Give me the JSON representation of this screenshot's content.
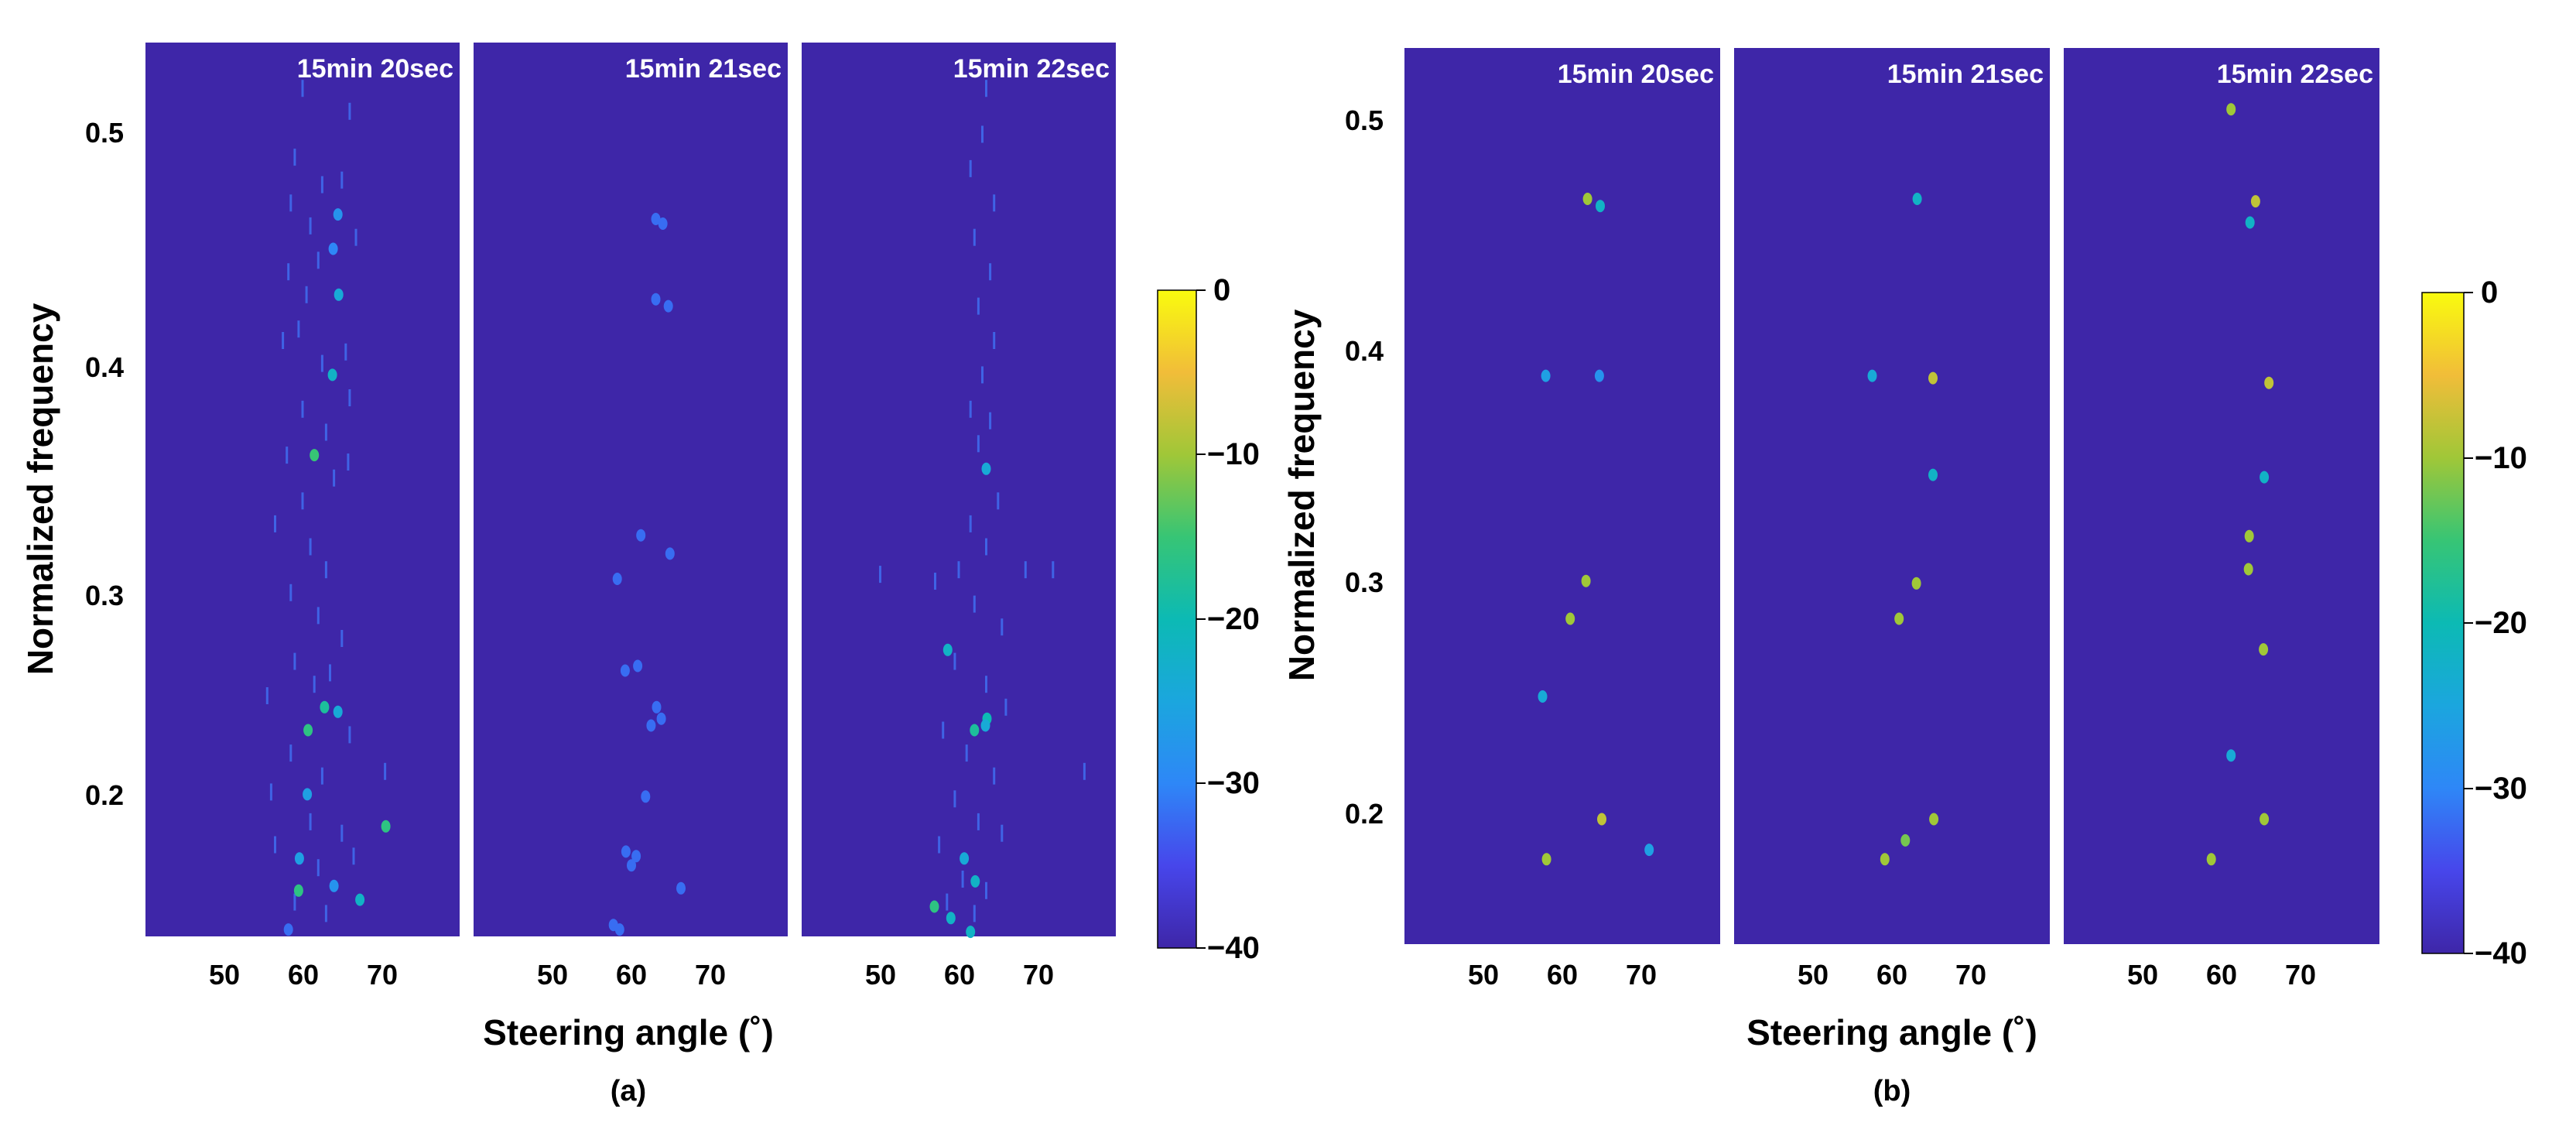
{
  "chart_data": [
    {
      "type": "heatmap",
      "figure_label": "(a)",
      "xlabel": "Steering angle (˚)",
      "ylabel": "Normalized frequency",
      "xlim": [
        40,
        80
      ],
      "ylim": [
        0.15,
        0.54
      ],
      "xticks": [
        50,
        60,
        70
      ],
      "yticks": [
        0.2,
        0.3,
        0.4,
        0.5
      ],
      "colorbar": {
        "min": -40,
        "max": 0,
        "ticks": [
          0,
          -10,
          -20,
          -30,
          -40
        ],
        "tick_labels": [
          "0",
          "−10",
          "−20",
          "−30",
          "−40"
        ],
        "colormap": "parula"
      },
      "panels": [
        {
          "title": "15min 20sec",
          "points": [
            {
              "x": 64.5,
              "y": 0.465,
              "v": -28
            },
            {
              "x": 63.9,
              "y": 0.45,
              "v": -30
            },
            {
              "x": 64.6,
              "y": 0.43,
              "v": -24
            },
            {
              "x": 63.8,
              "y": 0.395,
              "v": -22
            },
            {
              "x": 61.5,
              "y": 0.36,
              "v": -15
            },
            {
              "x": 62.8,
              "y": 0.25,
              "v": -18
            },
            {
              "x": 64.5,
              "y": 0.248,
              "v": -24
            },
            {
              "x": 60.7,
              "y": 0.24,
              "v": -16
            },
            {
              "x": 60.6,
              "y": 0.212,
              "v": -26
            },
            {
              "x": 70.6,
              "y": 0.198,
              "v": -16
            },
            {
              "x": 59.6,
              "y": 0.184,
              "v": -26
            },
            {
              "x": 59.5,
              "y": 0.17,
              "v": -16
            },
            {
              "x": 64.0,
              "y": 0.172,
              "v": -28
            },
            {
              "x": 67.3,
              "y": 0.166,
              "v": -22
            },
            {
              "x": 58.2,
              "y": 0.153,
              "v": -32
            }
          ],
          "streaks": [
            {
              "x": 60.0,
              "y": 0.52
            },
            {
              "x": 59.0,
              "y": 0.49
            },
            {
              "x": 58.5,
              "y": 0.47
            },
            {
              "x": 66.0,
              "y": 0.51
            },
            {
              "x": 65.0,
              "y": 0.48
            },
            {
              "x": 62.5,
              "y": 0.478
            },
            {
              "x": 61.0,
              "y": 0.46
            },
            {
              "x": 66.8,
              "y": 0.455
            },
            {
              "x": 58.2,
              "y": 0.44
            },
            {
              "x": 60.5,
              "y": 0.43
            },
            {
              "x": 62.0,
              "y": 0.445
            },
            {
              "x": 57.5,
              "y": 0.41
            },
            {
              "x": 59.5,
              "y": 0.415
            },
            {
              "x": 65.5,
              "y": 0.405
            },
            {
              "x": 62.5,
              "y": 0.4
            },
            {
              "x": 66.0,
              "y": 0.385
            },
            {
              "x": 60.0,
              "y": 0.38
            },
            {
              "x": 63.0,
              "y": 0.37
            },
            {
              "x": 58.0,
              "y": 0.36
            },
            {
              "x": 65.8,
              "y": 0.357
            },
            {
              "x": 64.0,
              "y": 0.35
            },
            {
              "x": 60.0,
              "y": 0.34
            },
            {
              "x": 56.5,
              "y": 0.33
            },
            {
              "x": 61.0,
              "y": 0.32
            },
            {
              "x": 63.0,
              "y": 0.31
            },
            {
              "x": 58.5,
              "y": 0.3
            },
            {
              "x": 62.0,
              "y": 0.29
            },
            {
              "x": 65.0,
              "y": 0.28
            },
            {
              "x": 59.0,
              "y": 0.27
            },
            {
              "x": 63.5,
              "y": 0.265
            },
            {
              "x": 55.5,
              "y": 0.255
            },
            {
              "x": 61.5,
              "y": 0.26
            },
            {
              "x": 66.0,
              "y": 0.238
            },
            {
              "x": 58.5,
              "y": 0.23
            },
            {
              "x": 62.5,
              "y": 0.22
            },
            {
              "x": 70.5,
              "y": 0.222
            },
            {
              "x": 56.0,
              "y": 0.213
            },
            {
              "x": 61.0,
              "y": 0.2
            },
            {
              "x": 65.0,
              "y": 0.195
            },
            {
              "x": 56.5,
              "y": 0.19
            },
            {
              "x": 62.0,
              "y": 0.18
            },
            {
              "x": 66.5,
              "y": 0.185
            },
            {
              "x": 59.0,
              "y": 0.165
            },
            {
              "x": 63.0,
              "y": 0.16
            }
          ]
        },
        {
          "title": "15min 21sec",
          "points": [
            {
              "x": 63.2,
              "y": 0.463,
              "v": -32
            },
            {
              "x": 64.1,
              "y": 0.461,
              "v": -32
            },
            {
              "x": 63.2,
              "y": 0.428,
              "v": -32
            },
            {
              "x": 64.8,
              "y": 0.425,
              "v": -32
            },
            {
              "x": 61.3,
              "y": 0.325,
              "v": -32
            },
            {
              "x": 65.0,
              "y": 0.317,
              "v": -32
            },
            {
              "x": 58.3,
              "y": 0.306,
              "v": -32
            },
            {
              "x": 60.9,
              "y": 0.268,
              "v": -32
            },
            {
              "x": 59.3,
              "y": 0.266,
              "v": -32
            },
            {
              "x": 63.3,
              "y": 0.25,
              "v": -32
            },
            {
              "x": 63.9,
              "y": 0.245,
              "v": -32
            },
            {
              "x": 62.6,
              "y": 0.242,
              "v": -32
            },
            {
              "x": 61.9,
              "y": 0.211,
              "v": -32
            },
            {
              "x": 59.4,
              "y": 0.187,
              "v": -32
            },
            {
              "x": 60.7,
              "y": 0.185,
              "v": -32
            },
            {
              "x": 60.1,
              "y": 0.181,
              "v": -32
            },
            {
              "x": 66.4,
              "y": 0.171,
              "v": -32
            },
            {
              "x": 57.8,
              "y": 0.155,
              "v": -32
            },
            {
              "x": 58.6,
              "y": 0.153,
              "v": -32
            }
          ],
          "streaks": []
        },
        {
          "title": "15min 22sec",
          "points": [
            {
              "x": 63.5,
              "y": 0.354,
              "v": -24
            },
            {
              "x": 58.6,
              "y": 0.275,
              "v": -22
            },
            {
              "x": 63.6,
              "y": 0.245,
              "v": -20
            },
            {
              "x": 63.4,
              "y": 0.242,
              "v": -24
            },
            {
              "x": 62.0,
              "y": 0.24,
              "v": -18
            },
            {
              "x": 60.7,
              "y": 0.184,
              "v": -24
            },
            {
              "x": 62.1,
              "y": 0.174,
              "v": -22
            },
            {
              "x": 56.9,
              "y": 0.163,
              "v": -16
            },
            {
              "x": 59.0,
              "y": 0.158,
              "v": -22
            },
            {
              "x": 61.5,
              "y": 0.152,
              "v": -22
            }
          ],
          "streaks": [
            {
              "x": 63.5,
              "y": 0.52
            },
            {
              "x": 63.0,
              "y": 0.5
            },
            {
              "x": 61.5,
              "y": 0.485
            },
            {
              "x": 64.5,
              "y": 0.47
            },
            {
              "x": 62.0,
              "y": 0.455
            },
            {
              "x": 64.0,
              "y": 0.44
            },
            {
              "x": 62.5,
              "y": 0.425
            },
            {
              "x": 64.5,
              "y": 0.41
            },
            {
              "x": 63.0,
              "y": 0.395
            },
            {
              "x": 61.5,
              "y": 0.38
            },
            {
              "x": 64.0,
              "y": 0.375
            },
            {
              "x": 62.5,
              "y": 0.365
            },
            {
              "x": 65.0,
              "y": 0.34
            },
            {
              "x": 61.5,
              "y": 0.33
            },
            {
              "x": 63.5,
              "y": 0.32
            },
            {
              "x": 60.0,
              "y": 0.31
            },
            {
              "x": 57.0,
              "y": 0.305
            },
            {
              "x": 50.0,
              "y": 0.308
            },
            {
              "x": 68.5,
              "y": 0.31
            },
            {
              "x": 72.0,
              "y": 0.31
            },
            {
              "x": 62.0,
              "y": 0.295
            },
            {
              "x": 65.5,
              "y": 0.285
            },
            {
              "x": 59.5,
              "y": 0.27
            },
            {
              "x": 63.5,
              "y": 0.26
            },
            {
              "x": 66.0,
              "y": 0.25
            },
            {
              "x": 58.0,
              "y": 0.24
            },
            {
              "x": 61.0,
              "y": 0.23
            },
            {
              "x": 64.5,
              "y": 0.22
            },
            {
              "x": 76.0,
              "y": 0.222
            },
            {
              "x": 59.5,
              "y": 0.21
            },
            {
              "x": 62.5,
              "y": 0.2
            },
            {
              "x": 65.5,
              "y": 0.195
            },
            {
              "x": 57.5,
              "y": 0.19
            },
            {
              "x": 60.5,
              "y": 0.175
            },
            {
              "x": 63.5,
              "y": 0.17
            },
            {
              "x": 58.5,
              "y": 0.165
            },
            {
              "x": 62.0,
              "y": 0.16
            }
          ]
        }
      ]
    },
    {
      "type": "heatmap",
      "figure_label": "(b)",
      "xlabel": "Steering angle (˚)",
      "ylabel": "Normalized frequency",
      "xlim": [
        40,
        80
      ],
      "ylim": [
        0.15,
        0.53
      ],
      "xticks": [
        50,
        60,
        70
      ],
      "yticks": [
        0.2,
        0.3,
        0.4,
        0.5
      ],
      "colorbar": {
        "min": -40,
        "max": 0,
        "ticks": [
          0,
          -10,
          -20,
          -30,
          -40
        ],
        "tick_labels": [
          "0",
          "−10",
          "−20",
          "−30",
          "−40"
        ],
        "colormap": "parula"
      },
      "panels": [
        {
          "title": "15min 20sec",
          "points": [
            {
              "x": 63.2,
              "y": 0.466,
              "v": -10
            },
            {
              "x": 64.8,
              "y": 0.463,
              "v": -22
            },
            {
              "x": 57.9,
              "y": 0.391,
              "v": -26
            },
            {
              "x": 64.7,
              "y": 0.391,
              "v": -28
            },
            {
              "x": 63.0,
              "y": 0.304,
              "v": -10
            },
            {
              "x": 61.0,
              "y": 0.288,
              "v": -10
            },
            {
              "x": 57.5,
              "y": 0.255,
              "v": -24
            },
            {
              "x": 65.0,
              "y": 0.203,
              "v": -8
            },
            {
              "x": 58.0,
              "y": 0.186,
              "v": -10
            },
            {
              "x": 71.0,
              "y": 0.19,
              "v": -26
            }
          ],
          "streaks": []
        },
        {
          "title": "15min 21sec",
          "points": [
            {
              "x": 63.2,
              "y": 0.466,
              "v": -22
            },
            {
              "x": 57.5,
              "y": 0.391,
              "v": -24
            },
            {
              "x": 65.2,
              "y": 0.39,
              "v": -8
            },
            {
              "x": 65.2,
              "y": 0.349,
              "v": -22
            },
            {
              "x": 63.1,
              "y": 0.303,
              "v": -10
            },
            {
              "x": 60.9,
              "y": 0.288,
              "v": -10
            },
            {
              "x": 65.3,
              "y": 0.203,
              "v": -10
            },
            {
              "x": 61.7,
              "y": 0.194,
              "v": -12
            },
            {
              "x": 59.1,
              "y": 0.186,
              "v": -10
            }
          ],
          "streaks": []
        },
        {
          "title": "15min 22sec",
          "points": [
            {
              "x": 61.2,
              "y": 0.504,
              "v": -10
            },
            {
              "x": 64.3,
              "y": 0.465,
              "v": -8
            },
            {
              "x": 63.6,
              "y": 0.456,
              "v": -22
            },
            {
              "x": 66.0,
              "y": 0.388,
              "v": -8
            },
            {
              "x": 65.4,
              "y": 0.348,
              "v": -22
            },
            {
              "x": 63.5,
              "y": 0.323,
              "v": -10
            },
            {
              "x": 63.4,
              "y": 0.309,
              "v": -10
            },
            {
              "x": 65.3,
              "y": 0.275,
              "v": -10
            },
            {
              "x": 61.2,
              "y": 0.23,
              "v": -24
            },
            {
              "x": 65.4,
              "y": 0.203,
              "v": -10
            },
            {
              "x": 58.7,
              "y": 0.186,
              "v": -10
            }
          ],
          "streaks": []
        }
      ]
    }
  ]
}
